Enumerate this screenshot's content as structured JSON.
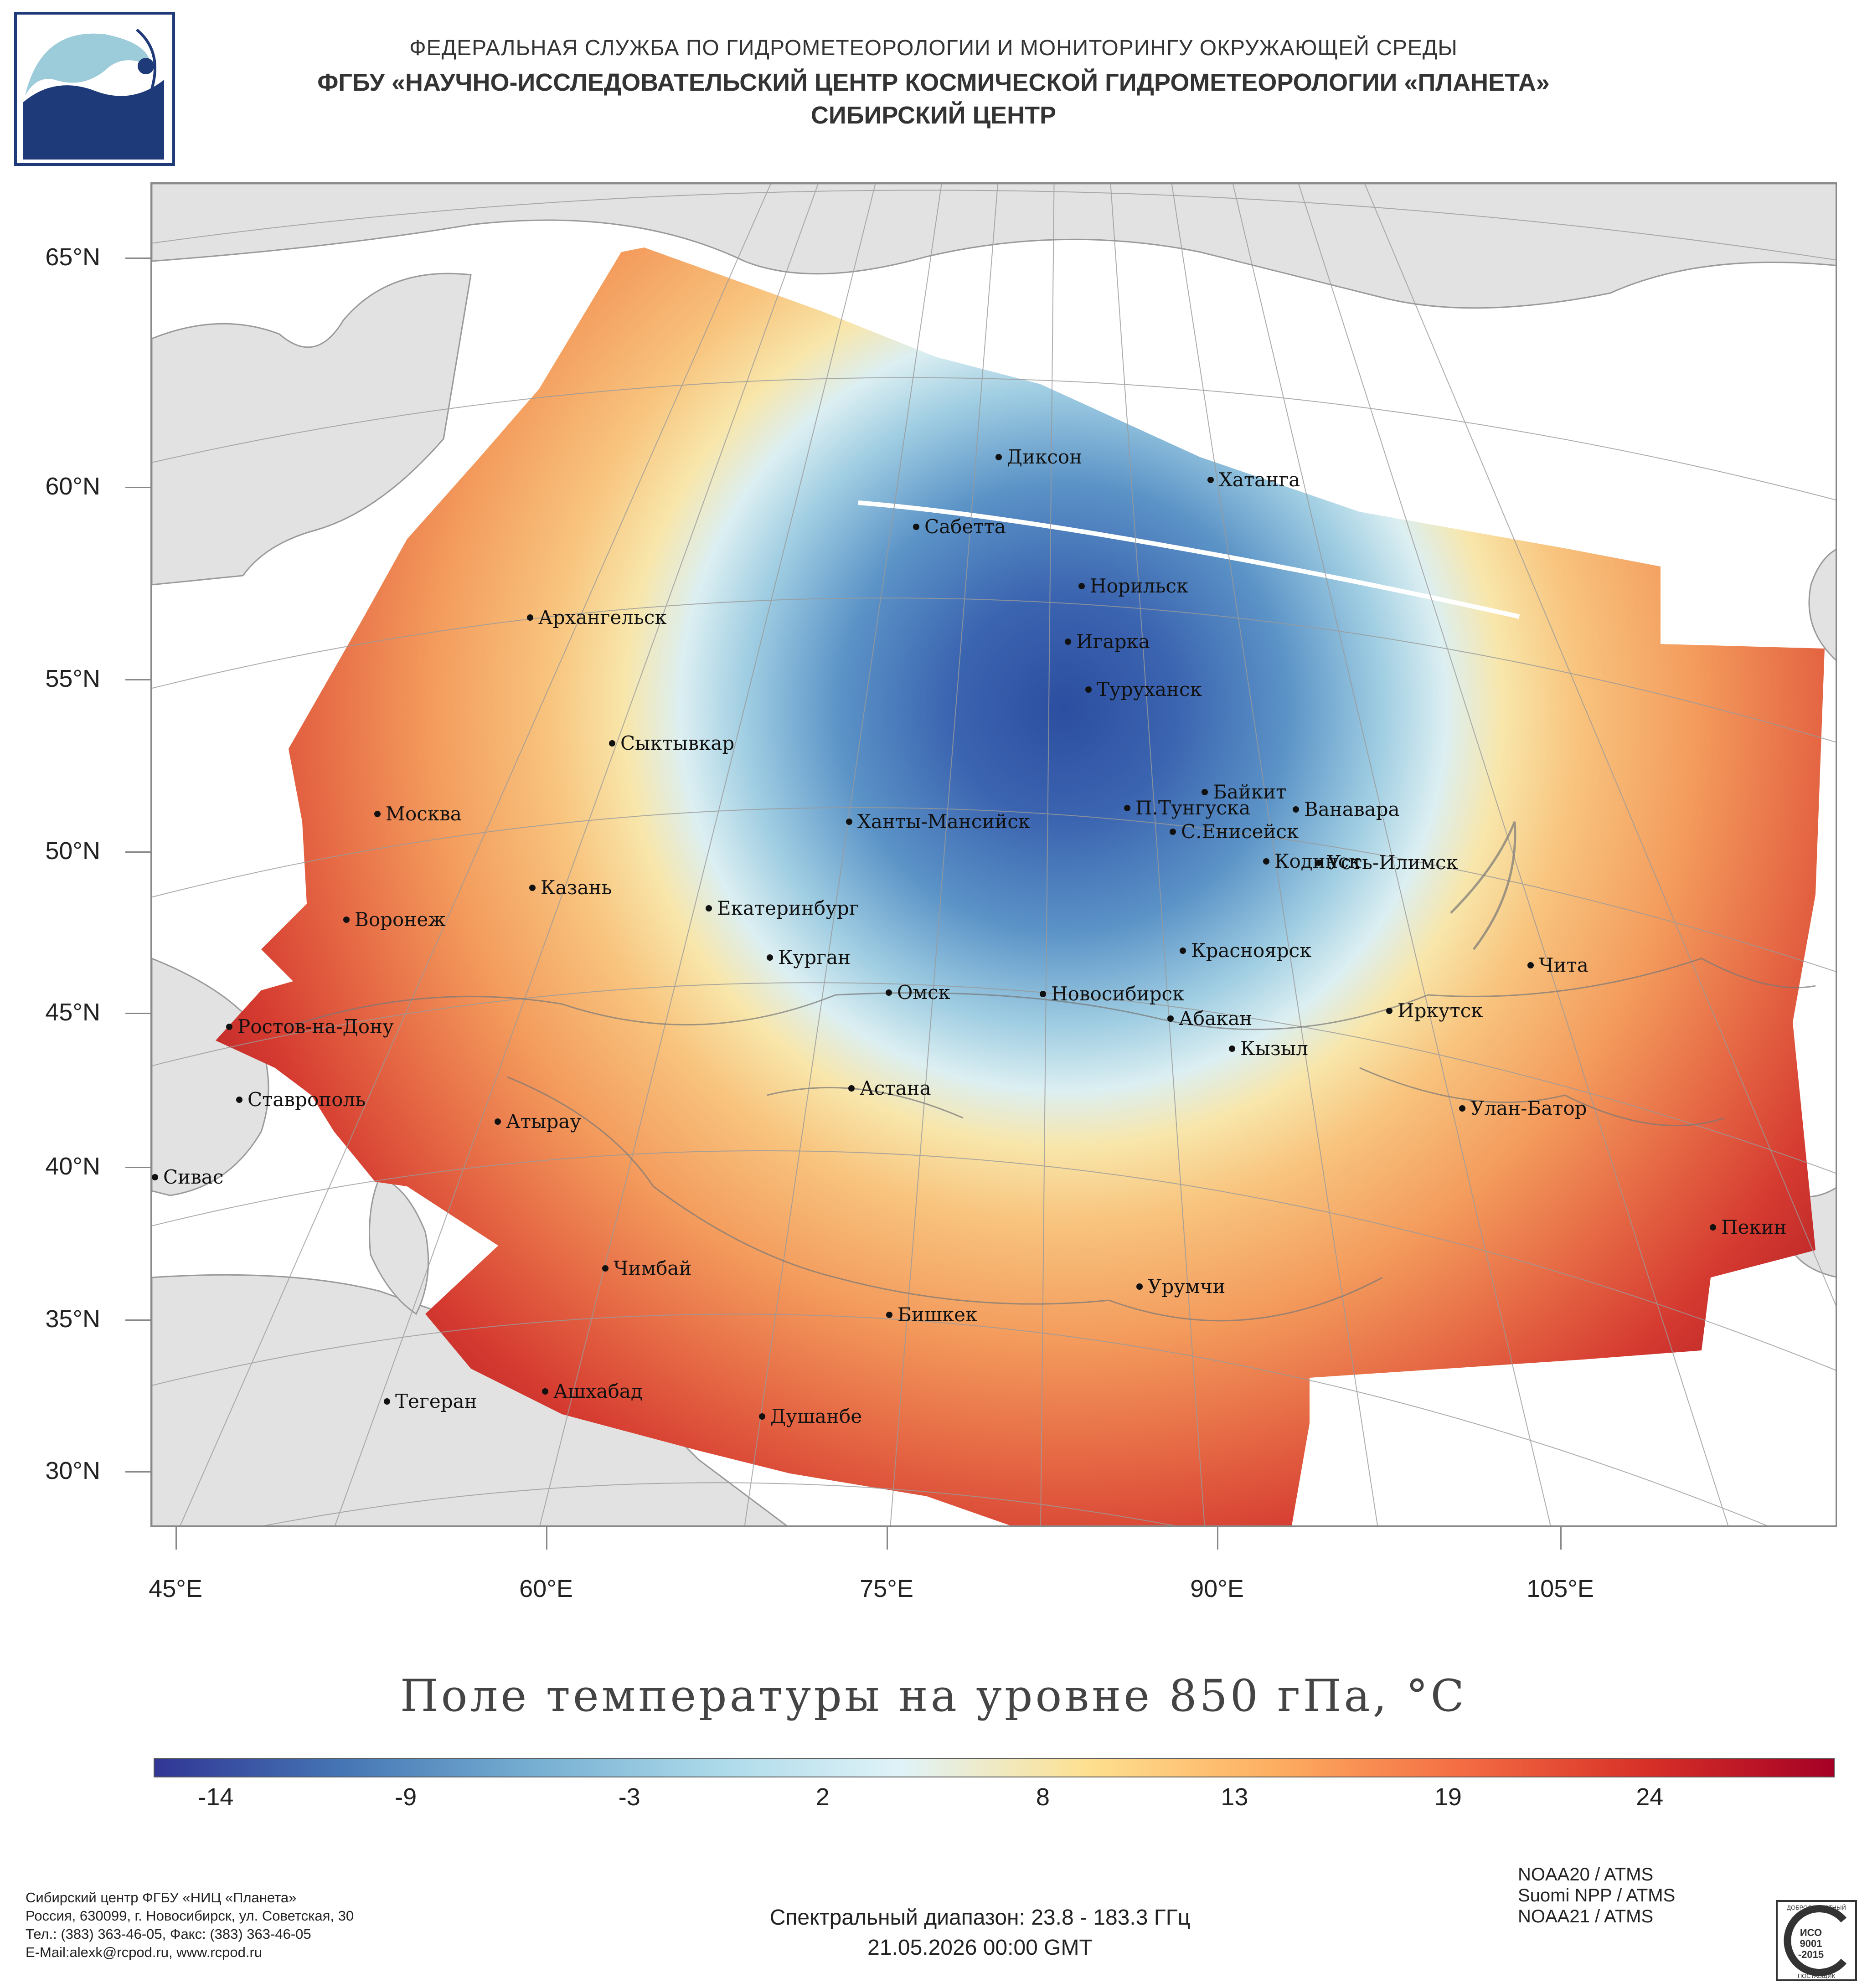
{
  "header": {
    "line1": "ФЕДЕРАЛЬНАЯ СЛУЖБА ПО ГИДРОМЕТЕОРОЛОГИИ И МОНИТОРИНГУ ОКРУЖАЮЩЕЙ СРЕДЫ",
    "line2": "ФГБУ «НАУЧНО-ИССЛЕДОВАТЕЛЬСКИЙ ЦЕНТР КОСМИЧЕСКОЙ ГИДРОМЕТЕОРОЛОГИИ «ПЛАНЕТА»",
    "line3": "СИБИРСКИЙ ЦЕНТР"
  },
  "map": {
    "lat_labels": [
      "65°N",
      "60°N",
      "55°N",
      "50°N",
      "45°N",
      "40°N",
      "35°N",
      "30°N"
    ],
    "lon_labels": [
      "45°E",
      "60°E",
      "75°E",
      "90°E",
      "105°E"
    ],
    "cities": [
      {
        "name": "Диксон"
      },
      {
        "name": "Хатанга"
      },
      {
        "name": "Сабетта"
      },
      {
        "name": "Норильск"
      },
      {
        "name": "Архангельск"
      },
      {
        "name": "Игарка"
      },
      {
        "name": "Туруханск"
      },
      {
        "name": "Сыктывкар"
      },
      {
        "name": "Байкит"
      },
      {
        "name": "Москва"
      },
      {
        "name": "Ханты-Мансийск"
      },
      {
        "name": "П.Тунгуска"
      },
      {
        "name": "Ванавара"
      },
      {
        "name": "С.Енисейск"
      },
      {
        "name": "Кодинск"
      },
      {
        "name": "Усть-Илимск"
      },
      {
        "name": "Казань"
      },
      {
        "name": "Екатеринбург"
      },
      {
        "name": "Воронеж"
      },
      {
        "name": "Красноярск"
      },
      {
        "name": "Курган"
      },
      {
        "name": "Чита"
      },
      {
        "name": "Омск"
      },
      {
        "name": "Новосибирск"
      },
      {
        "name": "Иркутск"
      },
      {
        "name": "Ростов-на-Дону"
      },
      {
        "name": "Абакан"
      },
      {
        "name": "Кызыл"
      },
      {
        "name": "Астана"
      },
      {
        "name": "Ставрополь"
      },
      {
        "name": "Улан-Батор"
      },
      {
        "name": "Атырау"
      },
      {
        "name": "Сивас"
      },
      {
        "name": "Пекин"
      },
      {
        "name": "Чимбай"
      },
      {
        "name": "Урумчи"
      },
      {
        "name": "Бишкек"
      },
      {
        "name": "Ашхабад"
      },
      {
        "name": "Тегеран"
      },
      {
        "name": "Душанбе"
      }
    ]
  },
  "title": "Поле температуры на уровне 850 гПа, °С",
  "colorbar": {
    "labels": [
      "-14",
      "-9",
      "-3",
      "2",
      "8",
      "13",
      "19",
      "24"
    ],
    "min": -16,
    "max": 28,
    "colors": [
      "#313695",
      "#4575b4",
      "#74add1",
      "#abd9e9",
      "#e0f3f8",
      "#fee090",
      "#fdae61",
      "#f46d43",
      "#d73027",
      "#a50026"
    ]
  },
  "footer": {
    "address": [
      "Сибирский центр ФГБУ «НИЦ «Планета»",
      "Россия, 630099, г. Новосибирск, ул. Советская, 30",
      "Тел.: (383) 363-46-05, Факс: (383) 363-46-05",
      "E-Mail:alexk@rcpod.ru, www.rcpod.ru"
    ],
    "spectral": "Спектральный диапазон: 23.8 - 183.3 ГГц",
    "datetime": "21.05.2026 00:00 GMT",
    "satellites": [
      "NOAA20 / ATMS",
      "Suomi NPP / ATMS",
      "NOAA21 / ATMS"
    ],
    "iso_text": [
      "ДОБРОСОВЕСТНЫЙ",
      "ИСО",
      "9001",
      "-2015",
      "ПОСТАВЩИК"
    ]
  }
}
